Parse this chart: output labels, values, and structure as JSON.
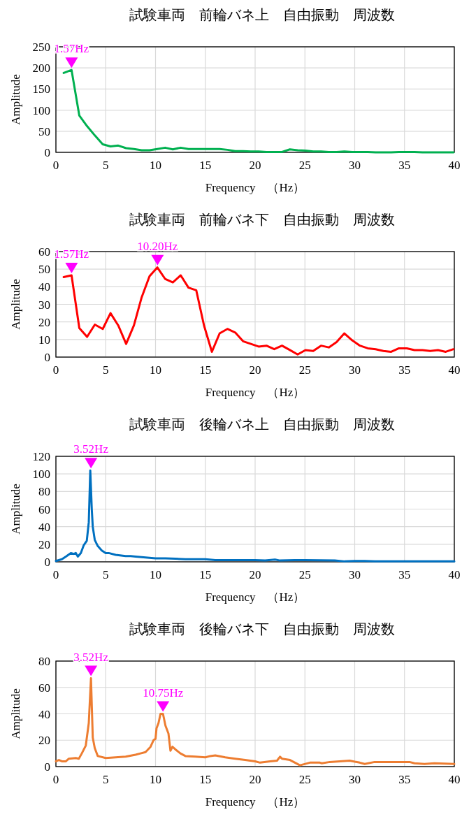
{
  "chart_data": [
    {
      "type": "line",
      "title": "試験車両　前輪バネ上　自由振動　周波数",
      "xlabel": "Frequency　（Hz）",
      "ylabel": "Amplitude",
      "xlim": [
        0,
        40
      ],
      "ylim": [
        0,
        250
      ],
      "xticks": [
        0,
        5,
        10,
        15,
        20,
        25,
        30,
        35,
        40
      ],
      "yticks": [
        0,
        50,
        100,
        150,
        200,
        250
      ],
      "grid": true,
      "marker": "none",
      "line_style": "solid",
      "annotations": [
        {
          "text": "1.57Hz",
          "x": 1.57,
          "y": 195
        }
      ],
      "series": [
        {
          "color": "#00b050",
          "x": [
            0.78,
            1.57,
            2.35,
            3.13,
            3.91,
            4.7,
            5.48,
            6.26,
            7.05,
            7.83,
            8.61,
            9.4,
            10.18,
            10.96,
            11.74,
            12.53,
            13.31,
            14.09,
            14.87,
            15.66,
            16.44,
            17.22,
            18.0,
            18.79,
            19.57,
            20.35,
            21.14,
            21.92,
            22.7,
            23.49,
            24.27,
            25.05,
            25.83,
            26.62,
            27.4,
            28.18,
            28.96,
            29.75,
            30.53,
            31.31,
            32.1,
            32.88,
            33.66,
            34.44,
            35.23,
            36.0,
            36.8,
            37.58,
            38.36,
            39.14,
            39.92
          ],
          "values": [
            188,
            195,
            87,
            62,
            40,
            19,
            14,
            16,
            10,
            8,
            5,
            5,
            8,
            11,
            7,
            11,
            8,
            8,
            8,
            8,
            8,
            6,
            3,
            3,
            2,
            2,
            1,
            1,
            1,
            7,
            5,
            4,
            2,
            2,
            1,
            1,
            2,
            1,
            1,
            1,
            0,
            0,
            0,
            1,
            1,
            1,
            0,
            0,
            0,
            0,
            0
          ]
        }
      ]
    },
    {
      "type": "line",
      "title": "試験車両　前輪バネ下　自由振動　周波数",
      "xlabel": "Frequency　（Hz）",
      "ylabel": "Amplitude",
      "xlim": [
        0,
        40
      ],
      "ylim": [
        0,
        60
      ],
      "xticks": [
        0,
        5,
        10,
        15,
        20,
        25,
        30,
        35,
        40
      ],
      "yticks": [
        0,
        10,
        20,
        30,
        40,
        50,
        60
      ],
      "grid": true,
      "marker": "none",
      "line_style": "solid",
      "annotations": [
        {
          "text": "1.57Hz",
          "x": 1.57,
          "y": 46.5
        },
        {
          "text": "10.20Hz",
          "x": 10.2,
          "y": 51
        }
      ],
      "series": [
        {
          "color": "#ff0000",
          "x": [
            0.78,
            1.57,
            2.35,
            3.13,
            3.91,
            4.7,
            5.48,
            6.26,
            7.05,
            7.83,
            8.61,
            9.4,
            10.18,
            10.96,
            11.74,
            12.53,
            13.31,
            14.09,
            14.87,
            15.66,
            16.44,
            17.22,
            18.0,
            18.79,
            19.57,
            20.35,
            21.14,
            21.92,
            22.7,
            23.49,
            24.27,
            25.05,
            25.83,
            26.62,
            27.4,
            28.18,
            28.96,
            29.75,
            30.53,
            31.31,
            32.1,
            32.88,
            33.66,
            34.44,
            35.23,
            36.0,
            36.8,
            37.58,
            38.36,
            39.14,
            39.92
          ],
          "values": [
            45.5,
            46.5,
            16.5,
            11.5,
            18.5,
            16,
            25,
            18,
            7.5,
            18,
            34,
            46,
            51,
            44.5,
            42.5,
            46.5,
            39.5,
            38,
            18,
            3,
            13.5,
            16,
            14,
            9,
            7.5,
            6,
            6.5,
            4.5,
            6.5,
            4,
            1.5,
            4,
            3.5,
            6.5,
            5.5,
            8.5,
            13.5,
            9.5,
            6.5,
            5,
            4.5,
            3.5,
            3,
            5,
            5,
            4,
            4,
            3.5,
            4,
            3,
            4.5
          ]
        }
      ]
    },
    {
      "type": "line",
      "title": "試験車両　後輪バネ上　自由振動　周波数",
      "xlabel": "Frequency　（Hz）",
      "ylabel": "Amplitude",
      "xlim": [
        0,
        40
      ],
      "ylim": [
        0,
        120
      ],
      "xticks": [
        0,
        5,
        10,
        15,
        20,
        25,
        30,
        35,
        40
      ],
      "yticks": [
        0,
        20,
        40,
        60,
        80,
        100,
        120
      ],
      "grid": true,
      "marker": "none",
      "line_style": "solid",
      "annotations": [
        {
          "text": "3.52Hz",
          "x": 3.52,
          "y": 104
        }
      ],
      "series": [
        {
          "color": "#0070c0",
          "x": [
            0,
            0.3,
            0.6,
            1,
            1.5,
            1.8,
            2.0,
            2.2,
            2.5,
            2.8,
            3.1,
            3.3,
            3.45,
            3.6,
            3.7,
            3.9,
            4.2,
            4.6,
            5,
            5.3,
            6,
            7,
            7.5,
            8,
            9,
            10,
            11,
            12,
            13,
            14,
            15,
            16,
            18,
            20,
            21,
            22,
            22.5,
            24,
            25,
            28,
            29,
            30,
            31,
            32,
            35,
            40
          ],
          "values": [
            1,
            2,
            3,
            6,
            10,
            9,
            10,
            6,
            10,
            19,
            24,
            45,
            104,
            60,
            40,
            25,
            18,
            13,
            10,
            10,
            8,
            6.5,
            6.5,
            6,
            5,
            4,
            4,
            3.5,
            3,
            3,
            3,
            2,
            2,
            2,
            1.5,
            2.5,
            1.5,
            2,
            2,
            1.5,
            0.5,
            1,
            1,
            0.5,
            0.5,
            0.5
          ]
        }
      ]
    },
    {
      "type": "line",
      "title": "試験車両　後輪バネ下　自由振動　周波数",
      "xlabel": "Frequency　（Hz）",
      "ylabel": "Amplitude",
      "xlim": [
        0,
        40
      ],
      "ylim": [
        0,
        80
      ],
      "xticks": [
        0,
        5,
        10,
        15,
        20,
        25,
        30,
        35,
        40
      ],
      "yticks": [
        0,
        20,
        40,
        60,
        80
      ],
      "grid": true,
      "marker": "none",
      "line_style": "solid",
      "annotations": [
        {
          "text": "3.52Hz",
          "x": 3.52,
          "y": 67
        },
        {
          "text": "10.75Hz",
          "x": 10.75,
          "y": 40
        }
      ],
      "series": [
        {
          "color": "#ed7d31",
          "x": [
            0,
            0.3,
            0.6,
            1,
            1.3,
            2,
            2.3,
            2.6,
            3,
            3.3,
            3.52,
            3.7,
            3.9,
            4.2,
            5,
            6,
            7,
            8,
            8.5,
            9,
            9.5,
            9.8,
            10,
            10.1,
            10.3,
            10.5,
            10.75,
            11,
            11.3,
            11.5,
            11.7,
            12,
            12.5,
            13,
            14,
            15,
            15.5,
            16,
            17,
            18,
            19,
            20,
            20.5,
            21.5,
            22.2,
            22.5,
            22.7,
            23.5,
            24,
            24.5,
            25.5,
            26.5,
            26.7,
            27.5,
            28.5,
            29.5,
            30.5,
            31,
            32,
            34,
            35.5,
            36,
            37,
            38,
            40
          ],
          "values": [
            4,
            5,
            4,
            4,
            6,
            6.5,
            6,
            10,
            16,
            33,
            67,
            22,
            14,
            8,
            6.5,
            7,
            7.5,
            9,
            10,
            11,
            15,
            20,
            21,
            29,
            33,
            40,
            40,
            31,
            25,
            12,
            15,
            13,
            10,
            8,
            7.5,
            7,
            8,
            8.5,
            7,
            6,
            5,
            4,
            3,
            4,
            4.5,
            7.5,
            6,
            5,
            3,
            1,
            3,
            3,
            2.5,
            3.5,
            4,
            4.5,
            3,
            2,
            3.5,
            3.5,
            3.5,
            2.5,
            2,
            2.5,
            2
          ]
        }
      ]
    }
  ]
}
